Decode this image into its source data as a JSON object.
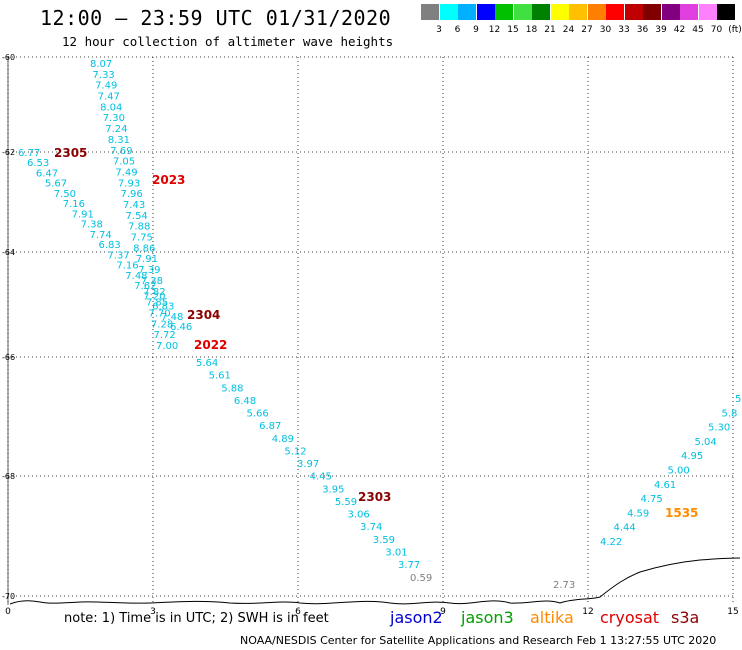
{
  "header": {
    "title": "12:00 – 23:59 UTC 01/31/2020",
    "subtitle": "12 hour collection of altimeter wave heights"
  },
  "legend_scale": {
    "colors": [
      "#808080",
      "#00ffff",
      "#00b0ff",
      "#0000ff",
      "#00c000",
      "#40e040",
      "#008000",
      "#ffff00",
      "#ffc000",
      "#ff8000",
      "#ff0000",
      "#c00000",
      "#800000",
      "#800080",
      "#e040e0",
      "#ff80ff",
      "#000000"
    ],
    "labels": [
      "3",
      "6",
      "9",
      "12",
      "15",
      "18",
      "21",
      "24",
      "27",
      "30",
      "33",
      "36",
      "39",
      "42",
      "45",
      "70",
      "(ft)"
    ]
  },
  "axes": {
    "y_labels": [
      "-60",
      "-62",
      "-64",
      "-66",
      "-68",
      "-70"
    ],
    "x_labels": [
      "0",
      "3",
      "6",
      "9",
      "12",
      "15"
    ]
  },
  "tracks": [
    {
      "name": "2305",
      "color": "#8b0000",
      "label_x": 54,
      "label_y": 157
    },
    {
      "name": "2023",
      "color": "#e00000",
      "label_x": 152,
      "label_y": 184
    },
    {
      "name": "2304",
      "color": "#8b0000",
      "label_x": 187,
      "label_y": 319
    },
    {
      "name": "2022",
      "color": "#e00000",
      "label_x": 194,
      "label_y": 349
    },
    {
      "name": "2303",
      "color": "#8b0000",
      "label_x": 358,
      "label_y": 501
    },
    {
      "name": "1535",
      "color": "#ff8c00",
      "label_x": 665,
      "label_y": 517
    }
  ],
  "wave_labels": {
    "track_a": [
      "8.07",
      "7.33",
      "7.49",
      "7.47",
      "8.04",
      "7.30",
      "7.24",
      "8.31",
      "7.69",
      "7.05",
      "7.49",
      "7.93",
      "7.96",
      "7.43",
      "7.54",
      "7.88",
      "7.75",
      "8.86",
      "7.91",
      "7.39",
      "7.38",
      "7.82",
      "7.85",
      "7.70",
      "7.28",
      "7.72",
      "7.00"
    ],
    "track_b": [
      "6.77",
      "6.53",
      "6.47",
      "5.67",
      "7.50",
      "7.16",
      "7.91",
      "7.38",
      "7.74",
      "6.83",
      "7.37",
      "7.16",
      "7.48",
      "7.62",
      "7.20",
      "6.83",
      "7.48",
      "6.46"
    ],
    "track_c": [
      "5.64",
      "5.61",
      "5.88",
      "6.48",
      "5.66",
      "6.87",
      "4.89",
      "5.12",
      "3.97",
      "4.45",
      "3.95",
      "5.59",
      "3.06",
      "3.74",
      "3.59",
      "3.01",
      "3.77"
    ],
    "gray": [
      "0.59",
      "2.73"
    ],
    "track_d": [
      "4.22",
      "4.44",
      "4.59",
      "4.75",
      "4.61",
      "5.00",
      "4.95",
      "5.04",
      "5.30",
      "5.8",
      "5"
    ]
  },
  "footer": {
    "note": "note: 1) Time is in UTC; 2) SWH is in feet",
    "satellites": [
      {
        "name": "jason2",
        "color": "#0000cc"
      },
      {
        "name": "jason3",
        "color": "#00a000"
      },
      {
        "name": "altika",
        "color": "#ff8c00"
      },
      {
        "name": "cryosat",
        "color": "#e00000"
      },
      {
        "name": "s3a",
        "color": "#8b0000"
      }
    ],
    "credit": "NOAA/NESDIS Center for Satellite Applications and Research    Feb  1 13:27:55 UTC 2020"
  },
  "colors": {
    "cyan": "#00c0e0",
    "gray": "#808080"
  }
}
